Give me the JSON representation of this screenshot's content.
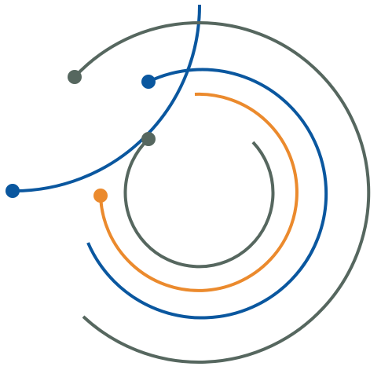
{
  "graphic": {
    "kind": "concentric-arcs",
    "palette": {
      "blue": "#0a579f",
      "gray": "#56675f",
      "orange": "#eb8a2d"
    },
    "arcs": [
      {
        "id": "outer-blue-arc",
        "color": "blue",
        "has_end_dot": true
      },
      {
        "id": "outer-gray-arc",
        "color": "gray",
        "has_end_dot": true
      },
      {
        "id": "middle-blue-arc",
        "color": "blue",
        "has_end_dot": true
      },
      {
        "id": "orange-arc",
        "color": "orange",
        "has_end_dot": true
      },
      {
        "id": "inner-gray-arc",
        "color": "gray",
        "has_end_dot": true
      }
    ]
  }
}
